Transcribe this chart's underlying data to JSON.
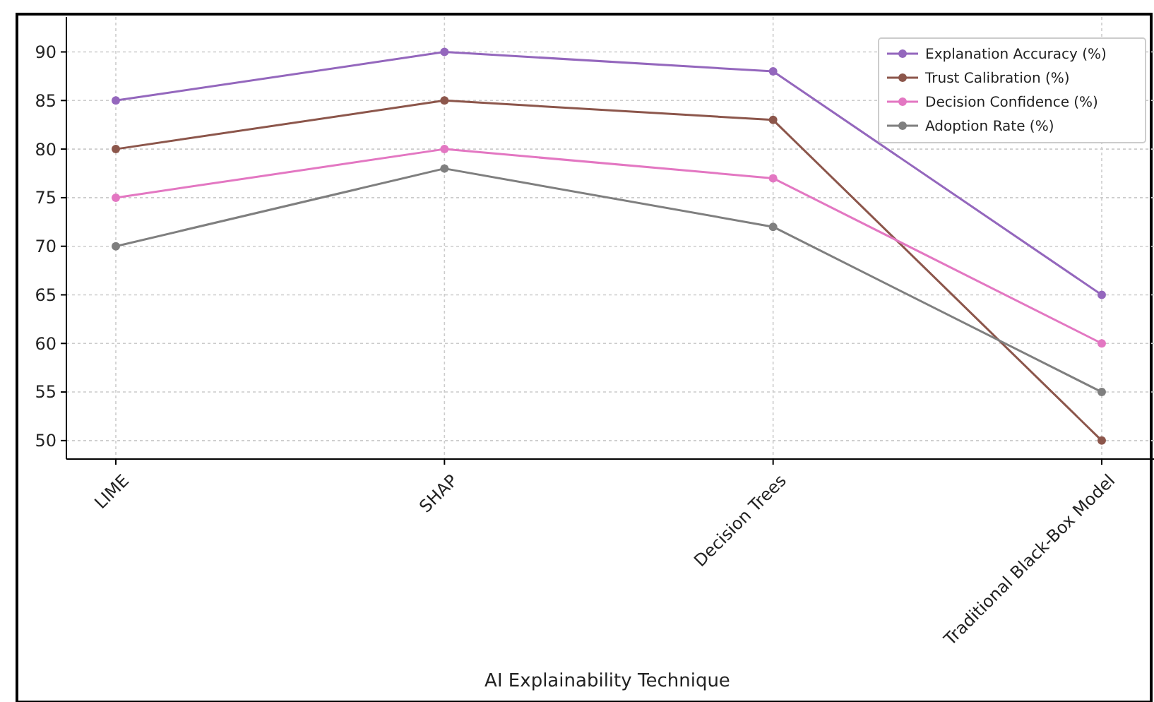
{
  "chart_data": {
    "type": "line",
    "xlabel": "AI Explainability Technique",
    "categories": [
      "LIME",
      "SHAP",
      "Decision Trees",
      "Traditional Black-Box Model"
    ],
    "series": [
      {
        "name": "Explanation Accuracy (%)",
        "color": "#9467bd",
        "values": [
          85,
          90,
          88,
          65
        ]
      },
      {
        "name": "Trust Calibration (%)",
        "color": "#8c564b",
        "values": [
          80,
          85,
          83,
          50
        ]
      },
      {
        "name": "Decision Confidence (%)",
        "color": "#e377c2",
        "values": [
          75,
          80,
          77,
          60
        ]
      },
      {
        "name": "Adoption Rate (%)",
        "color": "#7f7f7f",
        "values": [
          70,
          78,
          72,
          55
        ]
      }
    ],
    "ylim": [
      48.1,
      93.6
    ],
    "yticks": [
      50,
      55,
      60,
      65,
      70,
      75,
      80,
      85,
      90
    ],
    "grid": true,
    "legend": "top right",
    "marker": "circle",
    "line_style": "solid"
  }
}
